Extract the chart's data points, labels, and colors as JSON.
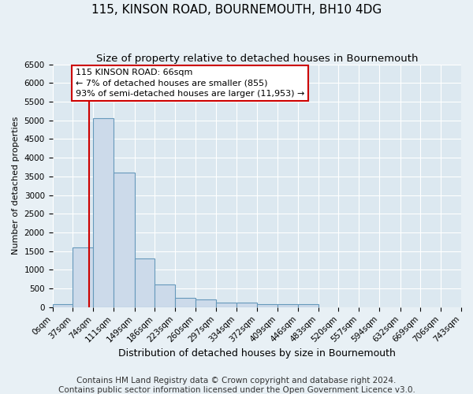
{
  "title": "115, KINSON ROAD, BOURNEMOUTH, BH10 4DG",
  "subtitle": "Size of property relative to detached houses in Bournemouth",
  "xlabel": "Distribution of detached houses by size in Bournemouth",
  "ylabel": "Number of detached properties",
  "bin_edges": [
    0,
    37,
    74,
    111,
    149,
    186,
    223,
    260,
    297,
    334,
    372,
    409,
    446,
    483,
    520,
    557,
    594,
    632,
    669,
    706,
    743
  ],
  "bar_heights": [
    80,
    1600,
    5050,
    3600,
    1300,
    600,
    250,
    200,
    130,
    120,
    90,
    80,
    80,
    0,
    0,
    0,
    0,
    0,
    0,
    0
  ],
  "bar_color": "#ccdaea",
  "bar_edge_color": "#6699bb",
  "property_size": 66,
  "annotation_text": "115 KINSON ROAD: 66sqm\n← 7% of detached houses are smaller (855)\n93% of semi-detached houses are larger (11,953) →",
  "annotation_box_color": "#ffffff",
  "annotation_box_edge_color": "#cc0000",
  "vline_color": "#cc0000",
  "ylim": [
    0,
    6500
  ],
  "yticks": [
    0,
    500,
    1000,
    1500,
    2000,
    2500,
    3000,
    3500,
    4000,
    4500,
    5000,
    5500,
    6000,
    6500
  ],
  "xtick_labels": [
    "0sqm",
    "37sqm",
    "74sqm",
    "111sqm",
    "149sqm",
    "186sqm",
    "223sqm",
    "260sqm",
    "297sqm",
    "334sqm",
    "372sqm",
    "409sqm",
    "446sqm",
    "483sqm",
    "520sqm",
    "557sqm",
    "594sqm",
    "632sqm",
    "669sqm",
    "706sqm",
    "743sqm"
  ],
  "footer_line1": "Contains HM Land Registry data © Crown copyright and database right 2024.",
  "footer_line2": "Contains public sector information licensed under the Open Government Licence v3.0.",
  "background_color": "#e8f0f5",
  "plot_bg_color": "#dce8f0",
  "grid_color": "#ffffff",
  "title_fontsize": 11,
  "subtitle_fontsize": 9.5,
  "xlabel_fontsize": 9,
  "ylabel_fontsize": 8,
  "tick_fontsize": 7.5,
  "footer_fontsize": 7.5
}
